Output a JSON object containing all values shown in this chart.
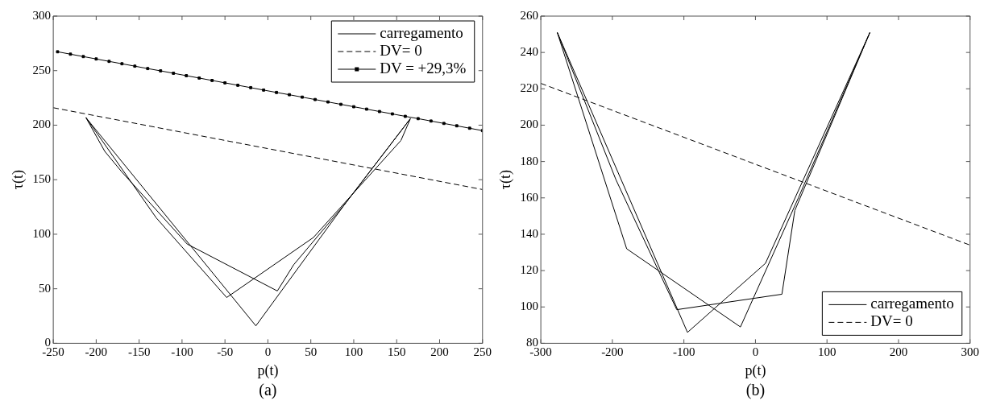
{
  "chart_data": [
    {
      "type": "line",
      "xlabel": "p(t)",
      "ylabel": "τ(t)",
      "annotations": [
        "(a)"
      ],
      "xlim": [
        -250,
        250
      ],
      "xticks": [
        -250,
        -200,
        -150,
        -100,
        -50,
        0,
        50,
        100,
        150,
        200,
        250
      ],
      "ylim": [
        0,
        300
      ],
      "yticks": [
        0,
        50,
        100,
        150,
        200,
        250,
        300
      ],
      "grid": false,
      "legend": "top right",
      "marker": "none",
      "series": [
        {
          "name": "carregamento",
          "color": "#000000",
          "line_style": "solid",
          "x": [
            -212,
            -190,
            -170,
            -94,
            11,
            30,
            90,
            166,
            155,
            53,
            -48,
            -130,
            -212,
            -14,
            90,
            166
          ],
          "values": [
            207,
            176,
            157,
            91,
            48,
            72,
            128,
            206,
            186,
            97,
            42,
            115,
            207,
            16,
            128,
            206
          ]
        },
        {
          "name": "DV= 0",
          "color": "#000000",
          "line_style": "dashed",
          "x": [
            -250,
            250
          ],
          "values": [
            216,
            141
          ]
        },
        {
          "name": "DV = +29,3%",
          "color": "#000000",
          "line_style": "solid",
          "marker": "square",
          "x": [
            -245,
            -230,
            -215,
            -200,
            -185,
            -170,
            -155,
            -140,
            -125,
            -110,
            -95,
            -80,
            -65,
            -50,
            -35,
            -20,
            -5,
            10,
            25,
            40,
            55,
            70,
            85,
            100,
            115,
            130,
            145,
            160,
            175,
            190,
            205,
            220,
            235,
            250
          ],
          "values": [
            267.3,
            265.1,
            262.9,
            260.7,
            258.5,
            256.3,
            254.1,
            251.9,
            249.8,
            247.6,
            245.4,
            243.2,
            241.0,
            238.8,
            236.6,
            234.4,
            232.2,
            230.0,
            227.9,
            225.7,
            223.5,
            221.3,
            219.1,
            216.9,
            214.7,
            212.5,
            210.3,
            208.1,
            206.0,
            203.8,
            201.6,
            199.4,
            197.2,
            195.0
          ]
        }
      ]
    },
    {
      "type": "line",
      "xlabel": "p(t)",
      "ylabel": "τ(t)",
      "annotations": [
        "(b)"
      ],
      "xlim": [
        -300,
        300
      ],
      "xticks": [
        -300,
        -200,
        -100,
        0,
        100,
        200,
        300
      ],
      "ylim": [
        80,
        260
      ],
      "yticks": [
        80,
        100,
        120,
        140,
        160,
        180,
        200,
        220,
        240,
        260
      ],
      "grid": false,
      "legend": "bottom right",
      "marker": "none",
      "series": [
        {
          "name": "carregamento",
          "color": "#000000",
          "line_style": "solid",
          "x": [
            -277,
            -180,
            -21,
            60,
            160,
            55,
            37,
            -110,
            -195,
            -277,
            -95,
            14,
            160
          ],
          "values": [
            251,
            132,
            89,
            160,
            251,
            153,
            107,
            98.5,
            170,
            251,
            86,
            124,
            251
          ]
        },
        {
          "name": "DV= 0",
          "color": "#000000",
          "line_style": "dashed",
          "x": [
            -300,
            300
          ],
          "values": [
            223,
            134
          ]
        }
      ]
    }
  ]
}
